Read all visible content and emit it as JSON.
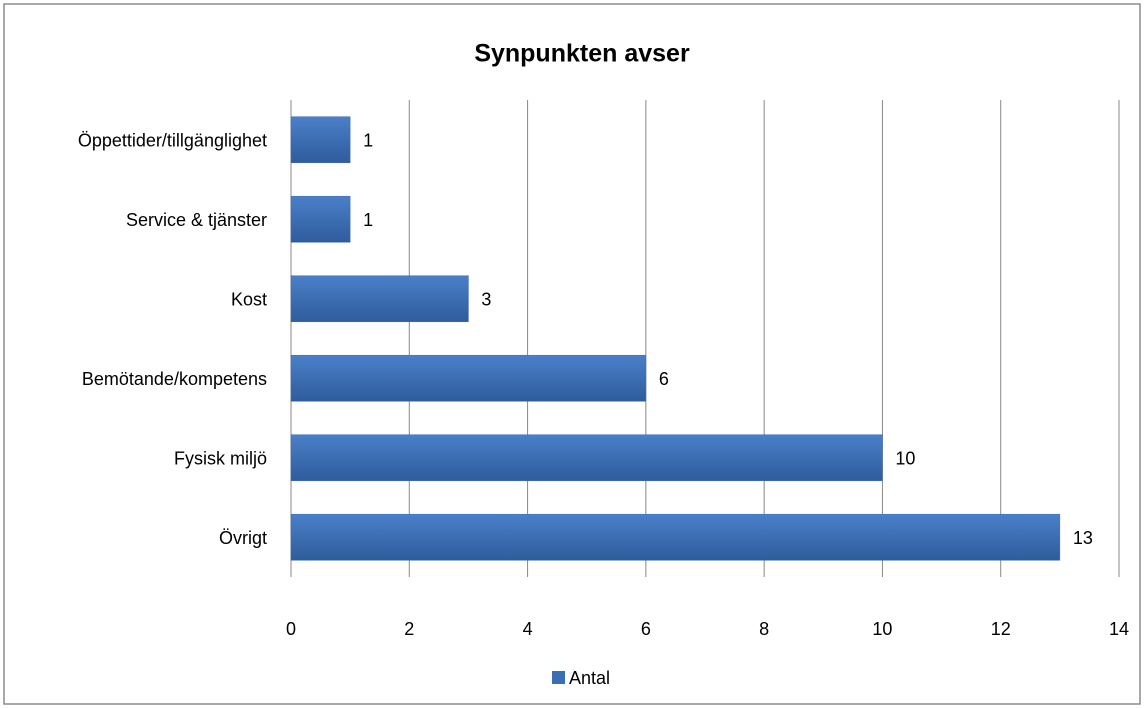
{
  "chart_data": {
    "type": "bar",
    "orientation": "horizontal",
    "title": "Synpunkten avser",
    "categories": [
      "Öppettider/tillgänglighet",
      "Service & tjänster",
      "Kost",
      "Bemötande/kompetens",
      "Fysisk miljö",
      "Övrigt"
    ],
    "series": [
      {
        "name": "Antal",
        "color": "#3b6db4",
        "values": [
          1,
          1,
          3,
          6,
          10,
          13
        ]
      }
    ],
    "xlim": [
      0,
      14
    ],
    "xticks": [
      0,
      2,
      4,
      6,
      8,
      10,
      12,
      14
    ],
    "grid": true,
    "legend": "bottom"
  }
}
